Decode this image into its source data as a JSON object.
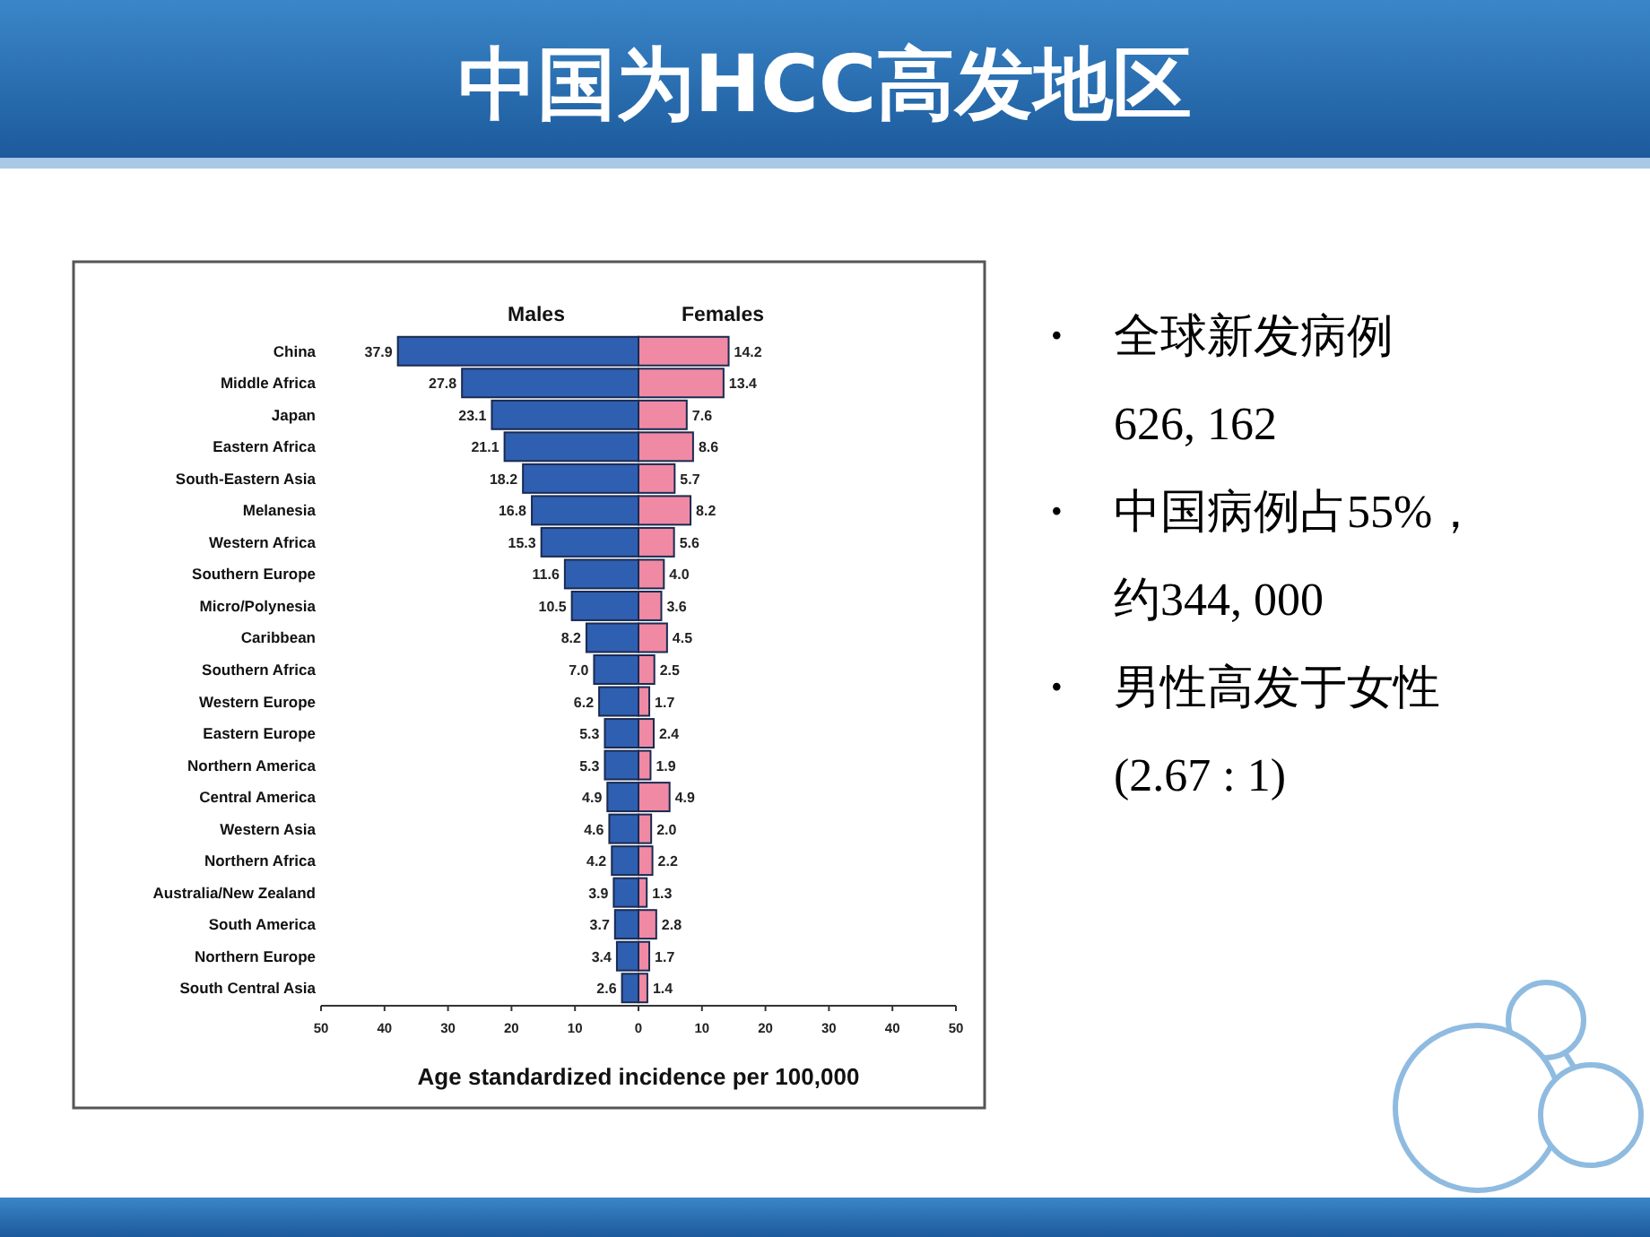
{
  "chart_data": {
    "type": "bar",
    "orientation": "horizontal",
    "title": "中国为HCC高发地区",
    "xlabel": "Age standardized incidence per 100,000",
    "categories": [
      "China",
      "Middle Africa",
      "Japan",
      "Eastern Africa",
      "South-Eastern Asia",
      "Melanesia",
      "Western Africa",
      "Southern Europe",
      "Micro/Polynesia",
      "Caribbean",
      "Southern Africa",
      "Western Europe",
      "Eastern Europe",
      "Northern America",
      "Central America",
      "Western Asia",
      "Northern Africa",
      "Australia/New Zealand",
      "South America",
      "Northern Europe",
      "South Central Asia"
    ],
    "series": [
      {
        "name": "Males",
        "color": "#2f5fb0",
        "values": [
          37.9,
          27.8,
          23.1,
          21.1,
          18.2,
          16.8,
          15.3,
          11.6,
          10.5,
          8.2,
          7.0,
          6.2,
          5.3,
          5.3,
          4.9,
          4.6,
          4.2,
          3.9,
          3.7,
          3.4,
          2.6
        ],
        "base": [
          -37.9,
          -27.8,
          -23.1,
          -21.1,
          -18.2,
          -16.8,
          -15.3,
          -11.6,
          -10.5,
          -8.2,
          -7.0,
          -6.2,
          -5.3,
          -5.3,
          -4.9,
          -4.6,
          -4.2,
          -3.9,
          -3.7,
          -3.4,
          -2.6
        ],
        "value_labels": [
          "37.9",
          "27.8",
          "23.1",
          "21.1",
          "18.2",
          "16.8",
          "15.3",
          "11.6",
          "10.5",
          "8.2",
          "7.0",
          "6.2",
          "5.3",
          "5.3",
          "4.9",
          "4.6",
          "4.2",
          "3.9",
          "3.7",
          "3.4",
          "2.6"
        ]
      },
      {
        "name": "Females",
        "color": "#f08aa4",
        "values": [
          14.2,
          13.4,
          7.6,
          8.6,
          5.7,
          8.2,
          5.6,
          4.0,
          3.6,
          4.5,
          2.5,
          1.7,
          2.4,
          1.9,
          4.9,
          2.0,
          2.2,
          1.3,
          2.8,
          1.7,
          1.4
        ],
        "value_labels": [
          "14.2",
          "13.4",
          "7.6",
          "8.6",
          "5.7",
          "8.2",
          "5.6",
          "4.0",
          "3.6",
          "4.5",
          "2.5",
          "1.7",
          "2.4",
          "1.9",
          "4.9",
          "2.0",
          "2.2",
          "1.3",
          "2.8",
          "1.7",
          "1.4"
        ]
      }
    ],
    "xlim": [
      -50,
      50
    ],
    "xticks": [
      {
        "value": -50,
        "label": "50"
      },
      {
        "value": -40,
        "label": "40"
      },
      {
        "value": -30,
        "label": "30"
      },
      {
        "value": -20,
        "label": "20"
      },
      {
        "value": -10,
        "label": "10"
      },
      0,
      10,
      20,
      30,
      40,
      50
    ],
    "legend": "top",
    "grid": false,
    "annotations": [
      "• 全球新发病例\n626, 162",
      "• 中国病例占55%，约344, 000",
      "• 男性高发于女性\n(2.67 : 1)"
    ]
  }
}
